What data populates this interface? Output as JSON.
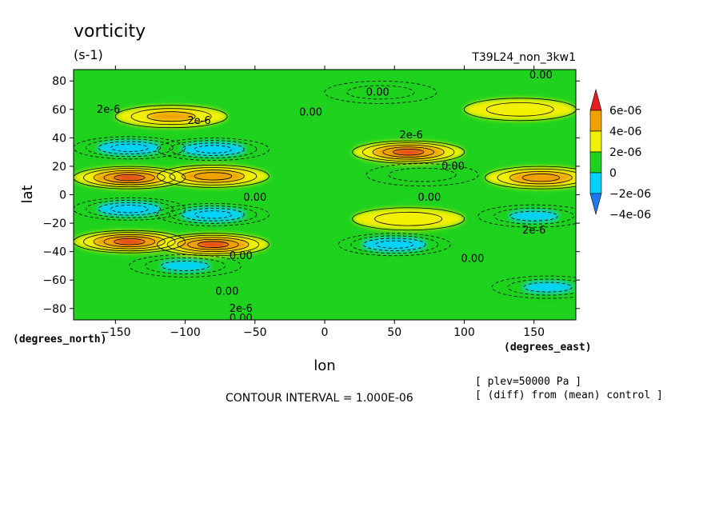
{
  "chart_data": {
    "type": "heatmap",
    "title": "vorticity",
    "units": "(s-1)",
    "run_label": "T39L24_non_3kw1",
    "xlabel": "lon",
    "ylabel": "lat",
    "x_units": "(degrees_east)",
    "y_units": "(degrees_north)",
    "xlim": [
      -180,
      180
    ],
    "ylim": [
      -88,
      88
    ],
    "x_ticks": [
      -150,
      -100,
      -50,
      0,
      50,
      100,
      150
    ],
    "x_tick_labels": [
      "−150",
      "−100",
      "−50",
      "0",
      "50",
      "100",
      "150"
    ],
    "y_ticks": [
      80,
      60,
      40,
      20,
      0,
      -20,
      -40,
      -60,
      -80
    ],
    "y_tick_labels": [
      "80",
      "60",
      "40",
      "20",
      "0",
      "−20",
      "−40",
      "−60",
      "−80"
    ],
    "contour_interval_text": "CONTOUR INTERVAL = 1.000E-06",
    "level_note": "[ plev=50000 Pa ]",
    "diff_note": "[ (diff) from (mean) control ]",
    "colorbar": {
      "colors": [
        "#1e78f0",
        "#00d2fa",
        "#1ed21e",
        "#f0f000",
        "#f0a000",
        "#e61e1e"
      ],
      "labels": [
        "6e-06",
        "4e-06",
        "2e-06",
        "0",
        "−2e-06",
        "−4e-06"
      ],
      "boundaries": [
        -6e-06,
        -4e-06,
        -2e-06,
        0,
        2e-06,
        4e-06,
        6e-06
      ]
    },
    "contour_labels": [
      {
        "text": "2e-6",
        "lon": -155,
        "lat": 60
      },
      {
        "text": "2e-6",
        "lon": -90,
        "lat": 52
      },
      {
        "text": "0.00",
        "lon": -10,
        "lat": 58
      },
      {
        "text": "0.00",
        "lon": 38,
        "lat": 72
      },
      {
        "text": "0.00",
        "lon": 155,
        "lat": 84
      },
      {
        "text": "2e-6",
        "lon": 62,
        "lat": 42
      },
      {
        "text": "0.00",
        "lon": 92,
        "lat": 20
      },
      {
        "text": "0.00",
        "lon": -50,
        "lat": -2
      },
      {
        "text": "0.00",
        "lon": 75,
        "lat": -2
      },
      {
        "text": "2e-6",
        "lon": 150,
        "lat": -25
      },
      {
        "text": "0.00",
        "lon": -60,
        "lat": -43
      },
      {
        "text": "0.00",
        "lon": 106,
        "lat": -45
      },
      {
        "text": "0.00",
        "lon": -70,
        "lat": -68
      },
      {
        "text": "2e-6",
        "lon": -60,
        "lat": -80
      },
      {
        "text": "0.00",
        "lon": -60,
        "lat": -87
      }
    ],
    "features": [
      {
        "lon": -140,
        "lat": 33,
        "value": -4e-06
      },
      {
        "lon": -140,
        "lat": 12,
        "value": 5e-06
      },
      {
        "lon": -140,
        "lat": -10,
        "value": -4e-06
      },
      {
        "lon": -140,
        "lat": -33,
        "value": 5e-06
      },
      {
        "lon": -80,
        "lat": 32,
        "value": -4e-06
      },
      {
        "lon": -80,
        "lat": 13,
        "value": 4e-06
      },
      {
        "lon": -80,
        "lat": -14,
        "value": -4e-06
      },
      {
        "lon": -80,
        "lat": -35,
        "value": 5e-06
      },
      {
        "lon": -110,
        "lat": 55,
        "value": 3e-06
      },
      {
        "lon": -100,
        "lat": -50,
        "value": -3e-06
      },
      {
        "lon": 40,
        "lat": 72,
        "value": -2e-06
      },
      {
        "lon": 60,
        "lat": 30,
        "value": 5e-06
      },
      {
        "lon": 60,
        "lat": -17,
        "value": 2e-06
      },
      {
        "lon": 50,
        "lat": -35,
        "value": -4e-06
      },
      {
        "lon": 70,
        "lat": 14,
        "value": -2e-06
      },
      {
        "lon": 155,
        "lat": 12,
        "value": 4e-06
      },
      {
        "lon": 150,
        "lat": -15,
        "value": -3e-06
      },
      {
        "lon": 160,
        "lat": -65,
        "value": -3e-06
      },
      {
        "lon": 140,
        "lat": 60,
        "value": 2e-06
      }
    ]
  }
}
